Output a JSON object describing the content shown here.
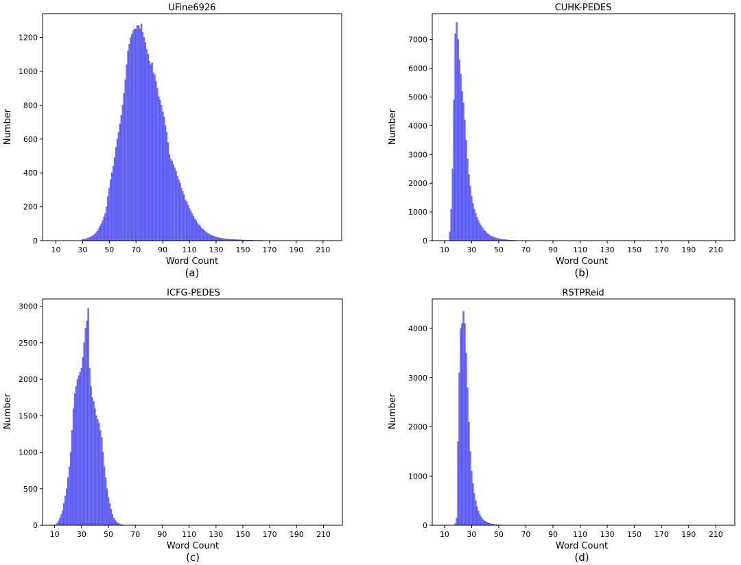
{
  "figure": {
    "bar_color": "#7070f8",
    "bar_edge_color": "#4040ee",
    "axis_color": "#000000"
  },
  "chart_data": [
    {
      "type": "bar",
      "title": "UFine6926",
      "xlabel": "Word Count",
      "ylabel": "Number",
      "caption": "(a)",
      "xlim": [
        0,
        224
      ],
      "ylim": [
        0,
        1340
      ],
      "xticks": [
        10,
        30,
        50,
        70,
        90,
        110,
        130,
        150,
        170,
        190,
        210
      ],
      "yticks": [
        0,
        200,
        400,
        600,
        800,
        1000,
        1200
      ],
      "bins": {
        "start": 30,
        "step": 1,
        "values": [
          8,
          8,
          10,
          12,
          15,
          18,
          22,
          26,
          32,
          38,
          45,
          55,
          70,
          85,
          100,
          118,
          140,
          160,
          200,
          260,
          310,
          360,
          400,
          440,
          490,
          550,
          600,
          640,
          690,
          740,
          800,
          870,
          950,
          1040,
          1120,
          1160,
          1200,
          1220,
          1240,
          1250,
          1250,
          1270,
          1270,
          1250,
          1280,
          1230,
          1200,
          1170,
          1130,
          1100,
          1060,
          1040,
          1050,
          990,
          980,
          940,
          900,
          850,
          830,
          800,
          760,
          730,
          680,
          640,
          580,
          510,
          480,
          470,
          450,
          430,
          410,
          380,
          360,
          340,
          310,
          290,
          270,
          240,
          230,
          210,
          190,
          175,
          160,
          145,
          130,
          118,
          105,
          95,
          85,
          75,
          68,
          60,
          54,
          48,
          42,
          38,
          34,
          30,
          27,
          24,
          21,
          19,
          17,
          15,
          14,
          13,
          12,
          11,
          10,
          9,
          9,
          8,
          8,
          7,
          7,
          6,
          6,
          5,
          5,
          5,
          4,
          4,
          4,
          4,
          3,
          3,
          3,
          3,
          2,
          2,
          2,
          2,
          2,
          2,
          2
        ]
      }
    },
    {
      "type": "bar",
      "title": "CUHK-PEDES",
      "xlabel": "Word Count",
      "ylabel": "Number",
      "caption": "(b)",
      "xlim": [
        1,
        224
      ],
      "ylim": [
        0,
        7900
      ],
      "xticks": [
        10,
        30,
        50,
        70,
        90,
        110,
        130,
        150,
        170,
        190,
        210
      ],
      "yticks": [
        0,
        1000,
        2000,
        3000,
        4000,
        5000,
        6000,
        7000
      ],
      "bins": {
        "start": 14,
        "step": 1,
        "values": [
          300,
          1100,
          2500,
          4900,
          7200,
          7600,
          7000,
          6300,
          5800,
          5200,
          4800,
          4200,
          3500,
          2850,
          2300,
          1900,
          1550,
          1300,
          1100,
          950,
          820,
          700,
          600,
          520,
          450,
          380,
          330,
          280,
          240,
          200,
          170,
          150,
          130,
          110,
          95,
          80,
          70,
          60,
          50,
          45,
          40,
          35,
          30,
          26,
          22,
          19,
          16,
          14,
          12,
          10,
          9,
          8,
          7,
          6,
          5,
          5,
          4,
          4,
          3,
          3,
          3,
          2,
          2,
          2,
          2,
          2
        ]
      }
    },
    {
      "type": "bar",
      "title": "ICFG-PEDES",
      "xlabel": "Word Count",
      "ylabel": "Number",
      "caption": "(c)",
      "xlim": [
        1,
        224
      ],
      "ylim": [
        0,
        3100
      ],
      "xticks": [
        10,
        30,
        50,
        70,
        90,
        110,
        130,
        150,
        170,
        190,
        210
      ],
      "yticks": [
        0,
        500,
        1000,
        1500,
        2000,
        2500,
        3000
      ],
      "bins": {
        "start": 11,
        "step": 1,
        "values": [
          10,
          30,
          60,
          100,
          150,
          200,
          300,
          400,
          500,
          650,
          800,
          1000,
          1300,
          1600,
          1800,
          1900,
          2000,
          2050,
          2100,
          2150,
          2300,
          2500,
          2700,
          2800,
          2970,
          2150,
          1900,
          1750,
          1700,
          1600,
          1500,
          1450,
          1400,
          1300,
          1200,
          1000,
          800,
          650,
          500,
          380,
          300,
          220,
          150,
          100,
          70,
          45,
          30,
          20,
          12,
          8,
          5,
          4,
          3,
          2,
          2,
          2,
          1,
          1,
          1,
          1
        ]
      }
    },
    {
      "type": "bar",
      "title": "RSTPReid",
      "xlabel": "Word Count",
      "ylabel": "Number",
      "caption": "(d)",
      "xlim": [
        1,
        224
      ],
      "ylim": [
        0,
        4600
      ],
      "xticks": [
        10,
        30,
        50,
        70,
        90,
        110,
        130,
        150,
        170,
        190,
        210
      ],
      "yticks": [
        0,
        1000,
        2000,
        3000,
        4000
      ],
      "bins": {
        "start": 18,
        "step": 1,
        "values": [
          30,
          150,
          1700,
          3100,
          4000,
          4100,
          4350,
          4100,
          3500,
          2800,
          2100,
          1500,
          1100,
          850,
          650,
          500,
          380,
          290,
          220,
          170,
          130,
          100,
          80,
          65,
          50,
          40,
          32,
          26,
          20,
          16,
          13,
          10,
          8,
          7,
          6,
          5,
          4,
          3,
          3,
          2,
          2,
          2
        ]
      }
    }
  ]
}
